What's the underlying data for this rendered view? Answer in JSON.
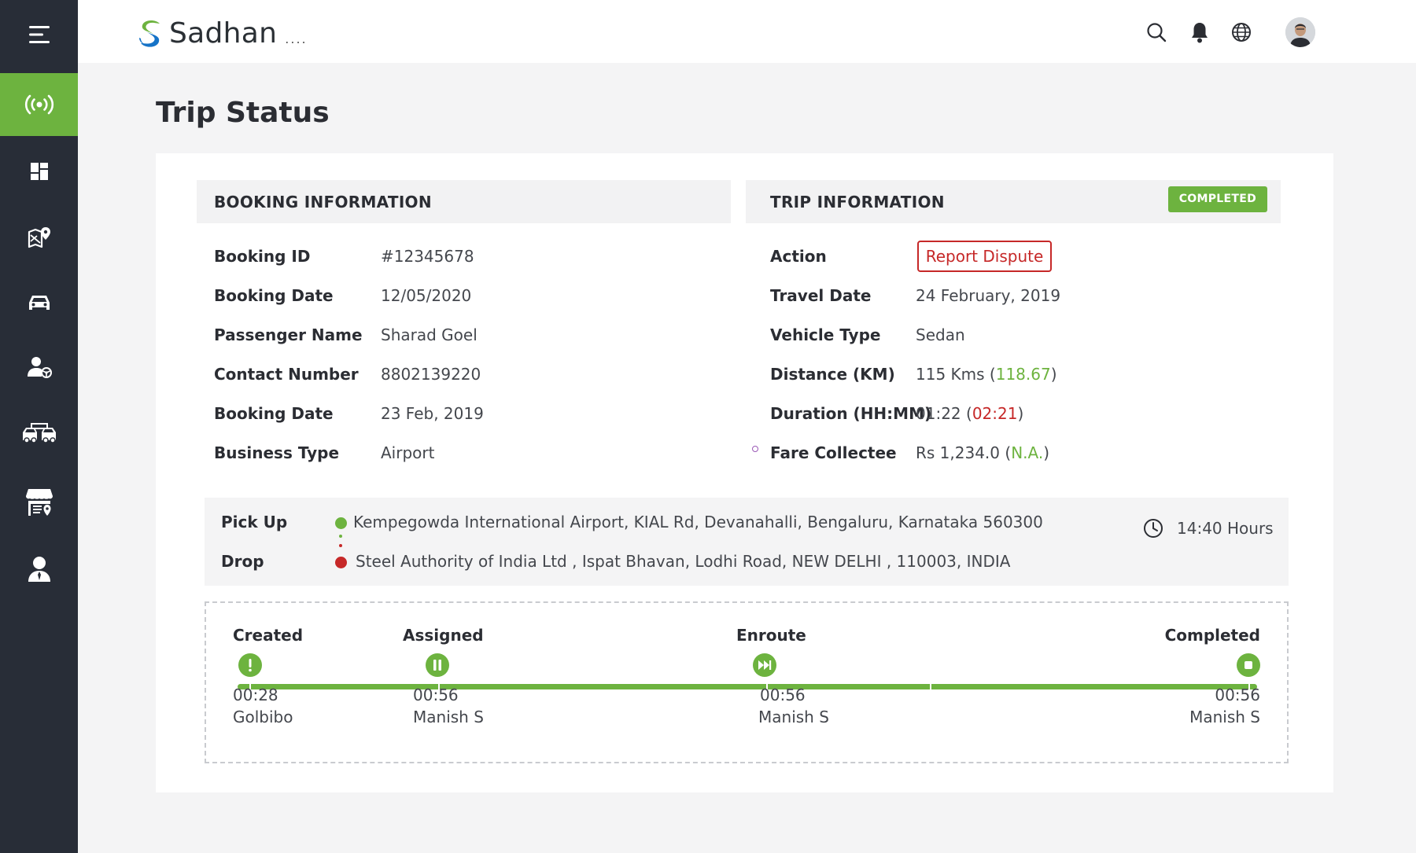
{
  "app": {
    "name": "Sadhan",
    "name_suffix": "...."
  },
  "colors": {
    "sidebar": "#282d37",
    "accent": "#6db33f",
    "danger": "#c62828"
  },
  "sidebar": {
    "items": [
      {
        "icon": "menu-icon",
        "active": false
      },
      {
        "icon": "live-tracking-icon",
        "active": true
      },
      {
        "icon": "dashboard-icon",
        "active": false
      },
      {
        "icon": "map-location-icon",
        "active": false
      },
      {
        "icon": "car-icon",
        "active": false
      },
      {
        "icon": "driver-icon",
        "active": false
      },
      {
        "icon": "fleet-icon",
        "active": false
      },
      {
        "icon": "vendor-icon",
        "active": false
      },
      {
        "icon": "user-icon",
        "active": false
      }
    ]
  },
  "header": {
    "icons": [
      "search-icon",
      "bell-icon",
      "globe-icon",
      "avatar"
    ]
  },
  "page": {
    "title": "Trip Status"
  },
  "booking": {
    "heading": "BOOKING INFORMATION",
    "rows": [
      {
        "label": "Booking ID",
        "value": "#12345678"
      },
      {
        "label": "Booking Date",
        "value": "12/05/2020"
      },
      {
        "label": "Passenger Name",
        "value": "Sharad Goel"
      },
      {
        "label": "Contact Number",
        "value": "8802139220"
      },
      {
        "label": "Booking Date",
        "value": "23 Feb, 2019"
      },
      {
        "label": "Business Type",
        "value": "Airport"
      }
    ]
  },
  "trip": {
    "heading": "TRIP INFORMATION",
    "status_badge": "COMPLETED",
    "action_label": "Action",
    "action_button": "Report Dispute",
    "travel_date": {
      "label": "Travel Date",
      "value": "24 February, 2019"
    },
    "vehicle_type": {
      "label": "Vehicle Type",
      "value": "Sedan"
    },
    "distance": {
      "label": "Distance (KM)",
      "value": "115 Kms",
      "actual": "118.67"
    },
    "duration": {
      "label": "Duration (HH:MM)",
      "value": "01:22",
      "actual": "02:21"
    },
    "fare": {
      "label": "Fare Collectee",
      "value": "Rs 1,234.0",
      "note": "N.A."
    }
  },
  "route": {
    "pickup_label": "Pick Up",
    "pickup_address": "Kempegowda International Airport,  KIAL Rd, Devanahalli, Bengaluru, Karnataka 560300",
    "drop_label": "Drop",
    "drop_address": "Steel Authority of India Ltd , Ispat Bhavan,  Lodhi Road, NEW DELHI ,  110003, INDIA",
    "time": "14:40 Hours"
  },
  "timeline": {
    "stages": [
      {
        "name": "Created",
        "time": "00:28",
        "user": "Golbibo",
        "icon": "alert-icon"
      },
      {
        "name": "Assigned",
        "time": "00:56",
        "user": "Manish S",
        "icon": "pause-icon"
      },
      {
        "name": "Enroute",
        "time": "00:56",
        "user": "Manish S",
        "icon": "fast-forward-icon"
      },
      {
        "name": "Completed",
        "time": "00:56",
        "user": "Manish S",
        "icon": "stop-icon"
      }
    ]
  }
}
